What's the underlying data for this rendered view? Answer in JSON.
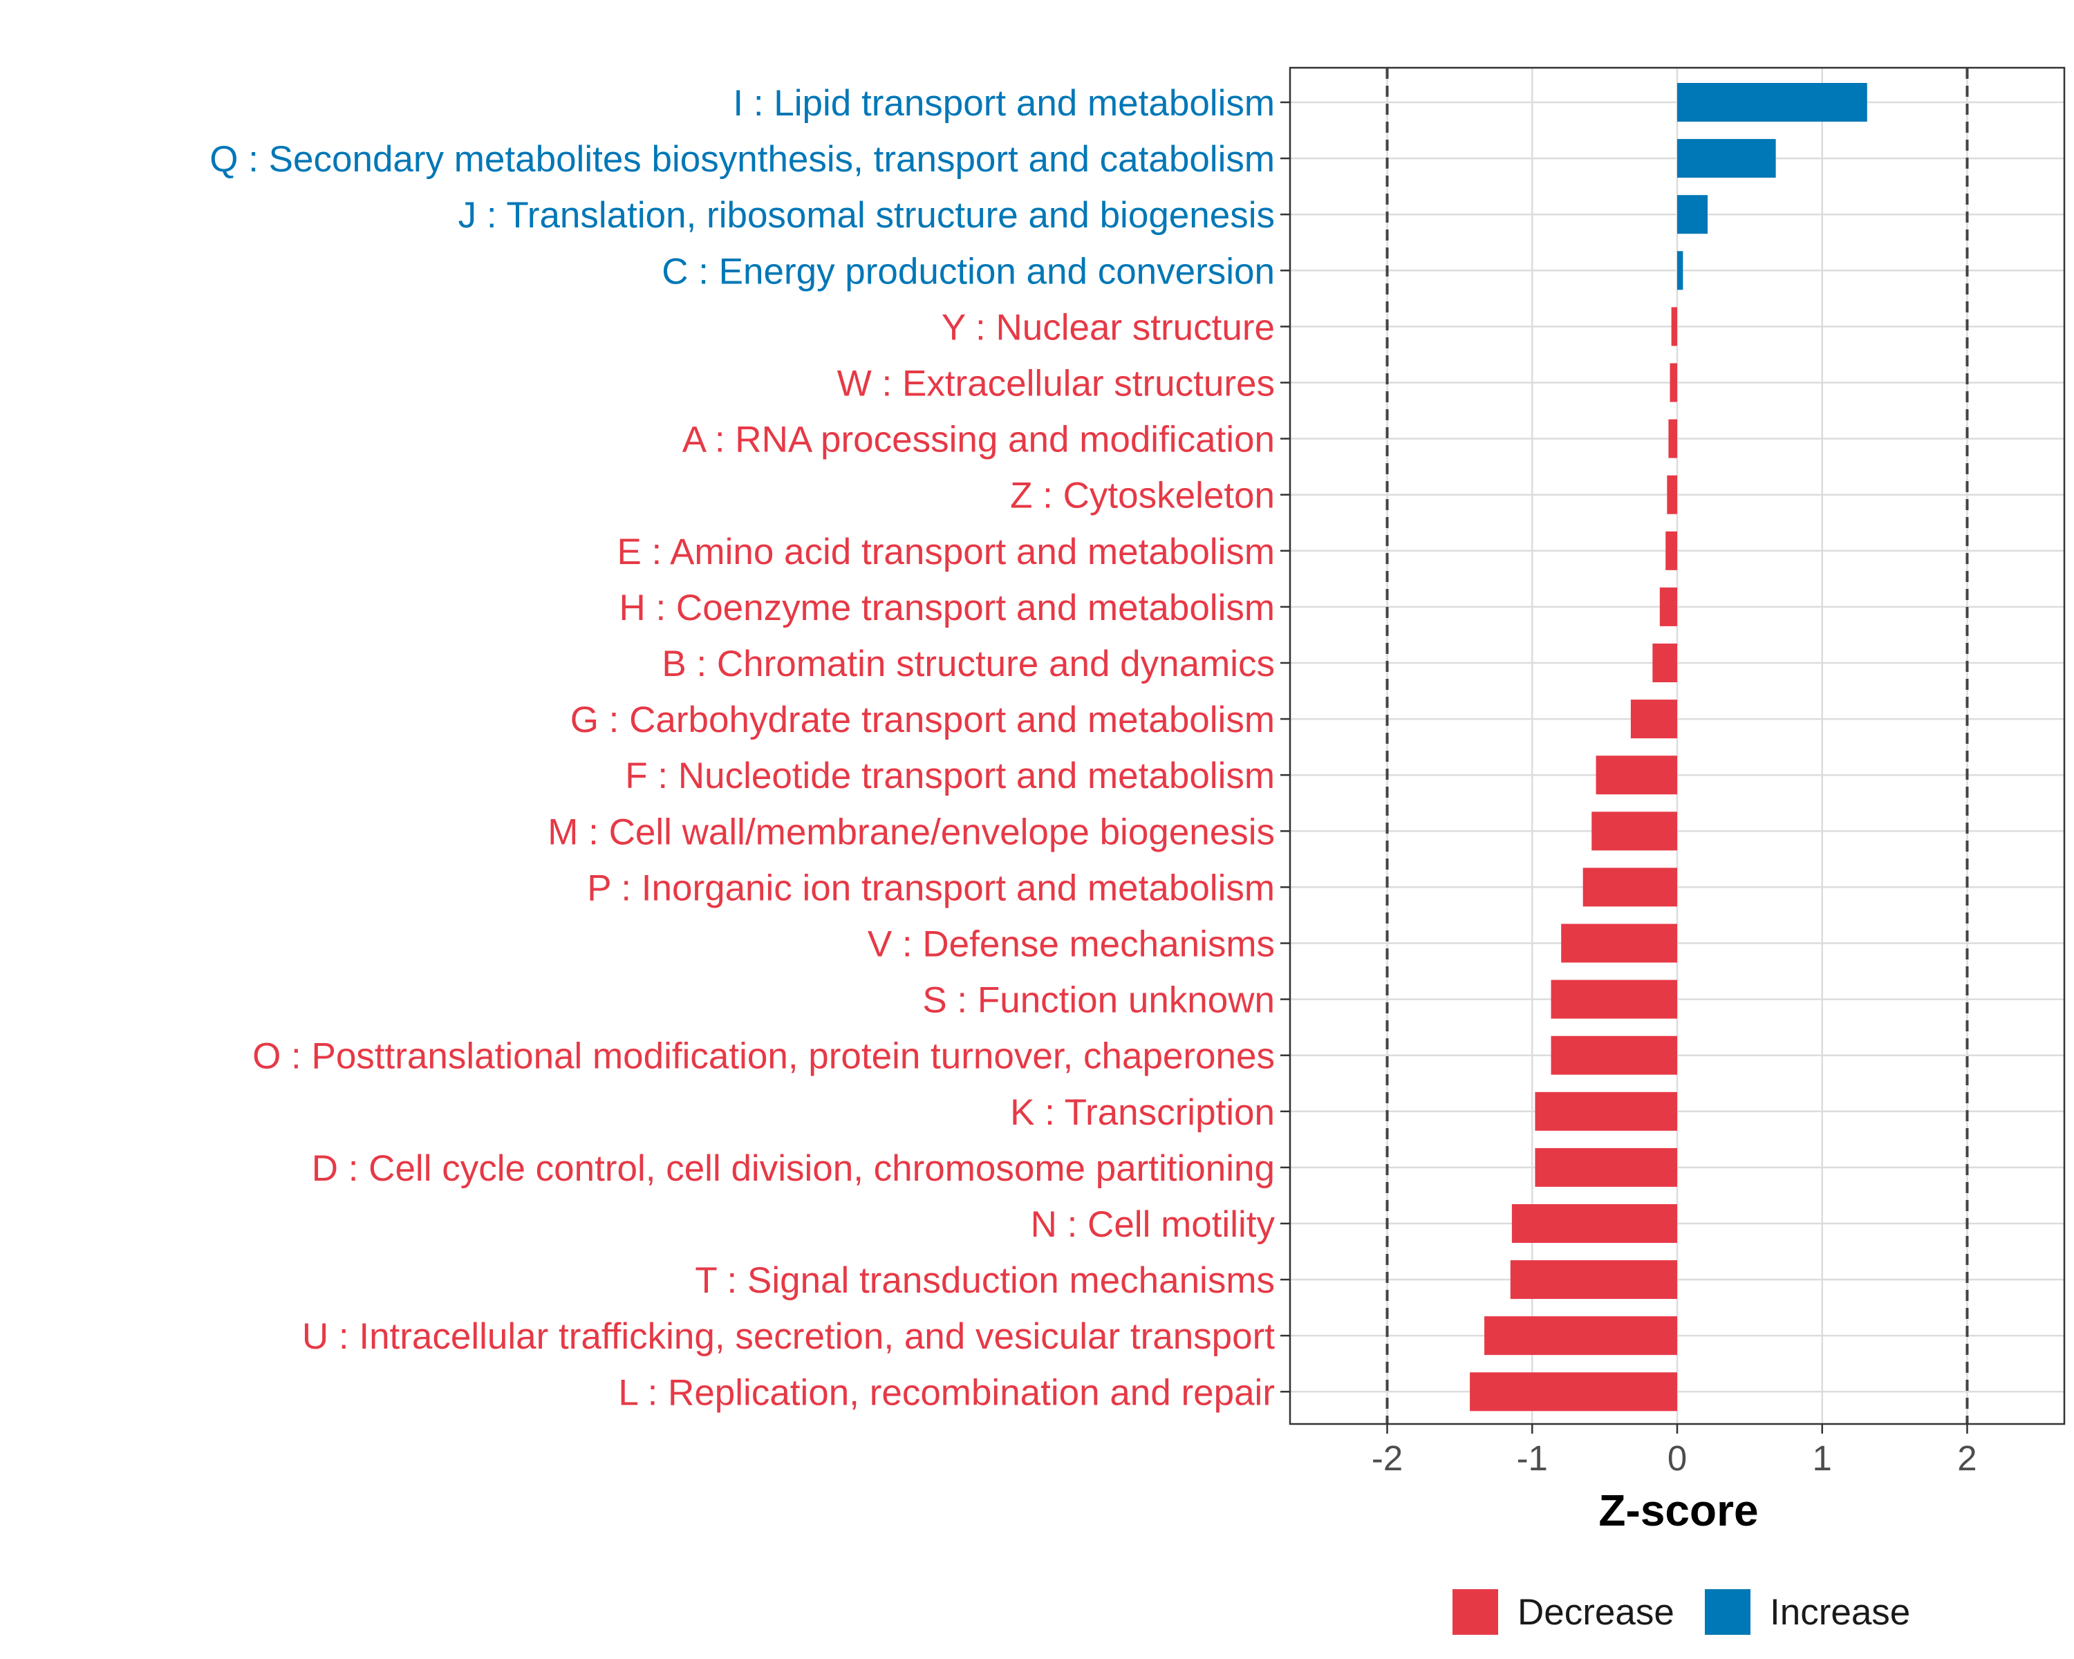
{
  "chart_data": {
    "type": "bar",
    "orientation": "horizontal",
    "xlabel": "Z-score",
    "xlim": [
      -2.67,
      2.67
    ],
    "xticks": [
      -2,
      -1,
      0,
      1,
      2
    ],
    "xtick_labels": [
      "-2",
      "-1",
      "0",
      "1",
      "2"
    ],
    "reference_lines": [
      -2,
      2
    ],
    "grid": true,
    "legend_position": "bottom",
    "legend": [
      {
        "label": "Decrease",
        "color": "#E63946"
      },
      {
        "label": "Increase",
        "color": "#0077B6"
      }
    ],
    "bars": [
      {
        "label": "I : Lipid transport and metabolism",
        "value": 1.31,
        "group": "Increase"
      },
      {
        "label": "Q : Secondary metabolites biosynthesis, transport and catabolism",
        "value": 0.68,
        "group": "Increase"
      },
      {
        "label": "J : Translation, ribosomal structure and biogenesis",
        "value": 0.21,
        "group": "Increase"
      },
      {
        "label": "C : Energy production and conversion",
        "value": 0.04,
        "group": "Increase"
      },
      {
        "label": "Y : Nuclear structure",
        "value": -0.04,
        "group": "Decrease"
      },
      {
        "label": "W : Extracellular structures",
        "value": -0.05,
        "group": "Decrease"
      },
      {
        "label": "A : RNA processing and modification",
        "value": -0.06,
        "group": "Decrease"
      },
      {
        "label": "Z : Cytoskeleton",
        "value": -0.07,
        "group": "Decrease"
      },
      {
        "label": "E : Amino acid transport and metabolism",
        "value": -0.08,
        "group": "Decrease"
      },
      {
        "label": "H : Coenzyme transport and metabolism",
        "value": -0.12,
        "group": "Decrease"
      },
      {
        "label": "B : Chromatin structure and dynamics",
        "value": -0.17,
        "group": "Decrease"
      },
      {
        "label": "G : Carbohydrate transport and metabolism",
        "value": -0.32,
        "group": "Decrease"
      },
      {
        "label": "F : Nucleotide transport and metabolism",
        "value": -0.56,
        "group": "Decrease"
      },
      {
        "label": "M : Cell wall/membrane/envelope biogenesis",
        "value": -0.59,
        "group": "Decrease"
      },
      {
        "label": "P : Inorganic ion transport and metabolism",
        "value": -0.65,
        "group": "Decrease"
      },
      {
        "label": "V : Defense mechanisms",
        "value": -0.8,
        "group": "Decrease"
      },
      {
        "label": "S : Function unknown",
        "value": -0.87,
        "group": "Decrease"
      },
      {
        "label": "O : Posttranslational modification, protein turnover, chaperones",
        "value": -0.87,
        "group": "Decrease"
      },
      {
        "label": "K : Transcription",
        "value": -0.98,
        "group": "Decrease"
      },
      {
        "label": "D : Cell cycle control, cell division, chromosome partitioning",
        "value": -0.98,
        "group": "Decrease"
      },
      {
        "label": "N : Cell motility",
        "value": -1.14,
        "group": "Decrease"
      },
      {
        "label": "T : Signal transduction mechanisms",
        "value": -1.15,
        "group": "Decrease"
      },
      {
        "label": "U : Intracellular trafficking, secretion, and vesicular transport",
        "value": -1.33,
        "group": "Decrease"
      },
      {
        "label": "L : Replication, recombination and repair",
        "value": -1.43,
        "group": "Decrease"
      }
    ]
  }
}
